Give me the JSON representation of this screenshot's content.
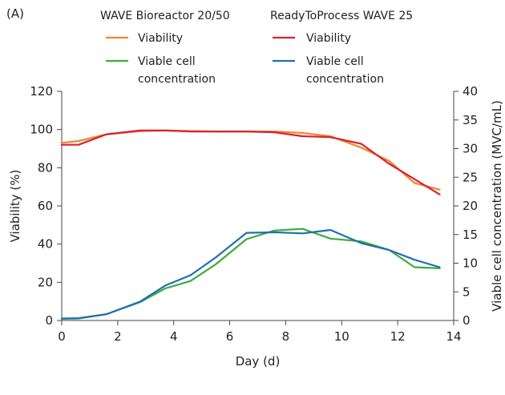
{
  "chart_data": {
    "type": "line",
    "panel_label": "(A)",
    "xlabel": "Day (d)",
    "ylabel_left": "Viability (%)",
    "ylabel_right": "Viable cell concentration (MVC/mL)",
    "xlim": [
      0,
      14
    ],
    "ylim_left": [
      0,
      120
    ],
    "ylim_right": [
      0,
      40
    ],
    "x_ticks": [
      "0",
      "2",
      "4",
      "6",
      "8",
      "10",
      "12",
      "14"
    ],
    "y_left_ticks": [
      "0",
      "20",
      "40",
      "60",
      "80",
      "100",
      "120"
    ],
    "y_right_ticks": [
      "0",
      "5",
      "10",
      "15",
      "20",
      "25",
      "30",
      "35",
      "40"
    ],
    "grid": false,
    "legend": {
      "placement": "top",
      "groups": [
        {
          "heading": "WAVE Bioreactor 20/50",
          "entries": [
            {
              "series": "wave_viability",
              "lines": [
                "Viability"
              ]
            },
            {
              "series": "wave_vcc",
              "lines": [
                "Viable cell",
                "concentration"
              ]
            }
          ]
        },
        {
          "heading": "ReadyToProcess WAVE 25",
          "entries": [
            {
              "series": "rtp_viability",
              "lines": [
                "Viability"
              ]
            },
            {
              "series": "rtp_vcc",
              "lines": [
                "Viable cell",
                "concentration"
              ]
            }
          ]
        }
      ]
    },
    "series": [
      {
        "id": "wave_viability",
        "axis": "left",
        "color": "#f0862f",
        "x": [
          0,
          0.6,
          1.6,
          2.8,
          3.7,
          4.6,
          5.5,
          6.6,
          7.6,
          8.6,
          9.6,
          10.7,
          11.7,
          12.6,
          13.5
        ],
        "y": [
          93,
          94,
          97.5,
          99.2,
          99.5,
          99.2,
          99,
          99,
          99,
          98.2,
          96.5,
          90.5,
          83.5,
          72,
          68.5
        ]
      },
      {
        "id": "rtp_viability",
        "axis": "left",
        "color": "#d9222f",
        "x": [
          0,
          0.6,
          1.6,
          2.8,
          3.7,
          4.6,
          5.5,
          6.6,
          7.6,
          8.6,
          9.6,
          10.7,
          11.7,
          12.6,
          13.5
        ],
        "y": [
          92,
          92,
          97.5,
          99.5,
          99.5,
          99,
          99,
          99,
          98.5,
          96.5,
          96,
          92.5,
          82,
          74,
          66
        ]
      },
      {
        "id": "wave_vcc",
        "axis": "right",
        "color": "#3cac3c",
        "x": [
          0,
          0.6,
          1.6,
          2.8,
          3.7,
          4.6,
          5.5,
          6.6,
          7.6,
          8.6,
          9.6,
          10.7,
          11.7,
          12.6,
          13.5
        ],
        "y": [
          0.3,
          0.35,
          1.1,
          3.2,
          5.6,
          6.9,
          9.8,
          14.2,
          15.7,
          16,
          14.3,
          13.8,
          12.3,
          9.3,
          9.1
        ]
      },
      {
        "id": "rtp_vcc",
        "axis": "right",
        "color": "#1f6fb4",
        "x": [
          0,
          0.6,
          1.6,
          2.8,
          3.7,
          4.6,
          5.5,
          6.6,
          7.6,
          8.6,
          9.6,
          10.7,
          11.7,
          12.6,
          13.5
        ],
        "y": [
          0.35,
          0.4,
          1.1,
          3.3,
          6.1,
          7.9,
          11,
          15.3,
          15.4,
          15.2,
          15.8,
          13.5,
          12.3,
          10.6,
          9.3
        ]
      }
    ]
  }
}
